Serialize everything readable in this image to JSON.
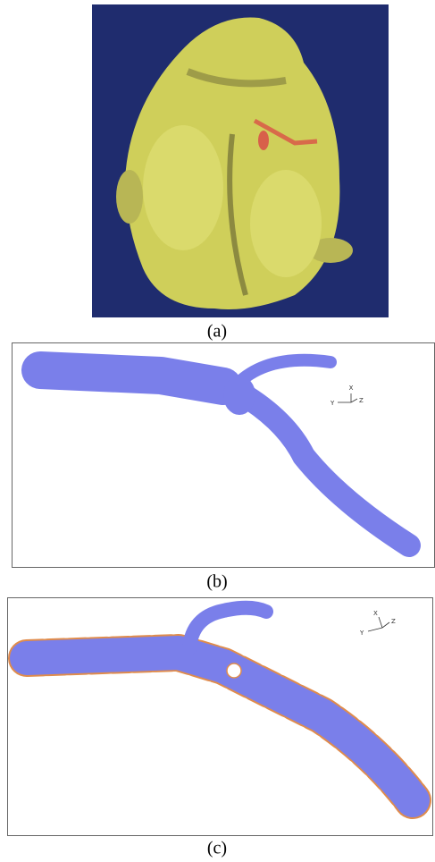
{
  "panels": [
    {
      "caption": "(a)"
    },
    {
      "caption": "(b)",
      "axes": [
        "X",
        "Y",
        "Z"
      ]
    },
    {
      "caption": "(c)",
      "axes": [
        "X",
        "Y",
        "Z"
      ]
    }
  ]
}
